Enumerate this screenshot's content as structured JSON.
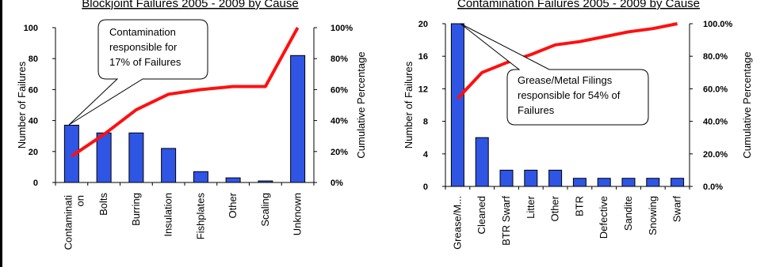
{
  "chart_data": [
    {
      "type": "bar",
      "title": "Blockjoint Failures 2005 - 2009 by Cause",
      "ylabel": "Number of Failures",
      "y2label": "Cumulative Percentage",
      "ylim": [
        0,
        100
      ],
      "yticks": [
        "0",
        "20",
        "40",
        "60",
        "80",
        "100"
      ],
      "y2lim": [
        0,
        100
      ],
      "y2ticks": [
        "0%",
        "20%",
        "40%",
        "60%",
        "80%",
        "100%"
      ],
      "categories": [
        "Contaminati on",
        "Bolts",
        "Burring",
        "Insulation",
        "Fishplates",
        "Other",
        "Scaling",
        "Unknown"
      ],
      "series": [
        {
          "values": [
            37,
            32,
            32,
            22,
            7,
            3,
            1,
            82
          ]
        },
        {
          "axis": "secondary",
          "line": true,
          "values": [
            17,
            31,
            47,
            57,
            60,
            62,
            62,
            100
          ]
        }
      ],
      "bar_color": "#2f55e4",
      "line_color": "#ff1010",
      "annotation": [
        "Contamination",
        "responsible for",
        "17% of Failures"
      ]
    },
    {
      "type": "bar",
      "title": "Contamination Failures 2005 - 2009 by Cause",
      "ylabel": "Number of Failures",
      "y2label": "Cumulative Percentage",
      "ylim": [
        0,
        20
      ],
      "yticks": [
        "0",
        "4",
        "8",
        "12",
        "16",
        "20"
      ],
      "y2lim": [
        0,
        100
      ],
      "y2ticks": [
        "0.0%",
        "20.0%",
        "40.0%",
        "60.0%",
        "80.0%",
        "100.0%"
      ],
      "categories": [
        "Grease/M...",
        "Cleaned",
        "BTR Swarf",
        "Litter",
        "Other",
        "BTR",
        "Defective",
        "Sandite",
        "Snowing",
        "Swarf"
      ],
      "series": [
        {
          "values": [
            20,
            6,
            2,
            2,
            2,
            1,
            1,
            1,
            1,
            1
          ]
        },
        {
          "axis": "secondary",
          "line": true,
          "values": [
            54,
            70,
            76,
            81,
            87,
            89,
            92,
            95,
            97,
            100
          ]
        }
      ],
      "bar_color": "#2f55e4",
      "line_color": "#ff1010",
      "annotation": [
        "Grease/Metal Filings",
        "responsible for 54% of",
        "Failures"
      ]
    }
  ]
}
